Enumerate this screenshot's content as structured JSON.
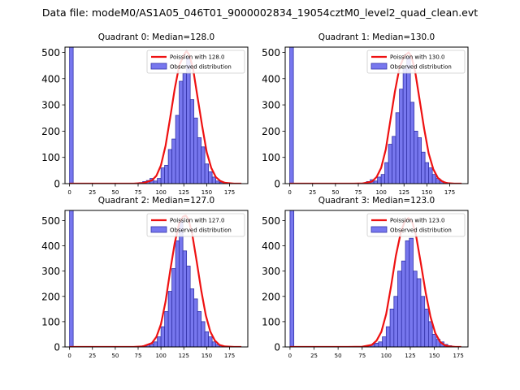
{
  "figure_title": "Data file: modeM0/AS1A05_046T01_9000002834_19054cztM0_level2_quad_clean.evt",
  "colors": {
    "bar_fill": "#7777ee",
    "bar_edge": "#3333aa",
    "poisson_line": "#ee1111",
    "axis": "#000000"
  },
  "chart_data": [
    {
      "type": "bar",
      "title": "Quadrant 0: Median=128.0",
      "xlabel": "",
      "ylabel": "",
      "xlim": [
        -5,
        195
      ],
      "ylim": [
        0,
        520
      ],
      "xticks": [
        0,
        25,
        50,
        75,
        100,
        125,
        150,
        175
      ],
      "yticks": [
        0,
        100,
        200,
        300,
        400,
        500
      ],
      "bin_width": 4,
      "legend": {
        "position": "top-right",
        "entries": [
          "Poission with 128.0",
          "Observed distribution"
        ]
      },
      "series": [
        {
          "name": "Observed distribution",
          "kind": "hist",
          "bins": [
            0,
            68,
            72,
            76,
            80,
            84,
            88,
            92,
            96,
            100,
            104,
            108,
            112,
            116,
            120,
            124,
            128,
            132,
            136,
            140,
            144,
            148,
            152,
            156,
            160,
            164
          ],
          "values": [
            520,
            1,
            2,
            4,
            8,
            12,
            20,
            10,
            20,
            60,
            70,
            130,
            170,
            260,
            390,
            420,
            480,
            320,
            250,
            175,
            140,
            75,
            45,
            25,
            10,
            5
          ]
        },
        {
          "name": "Poission with 128.0",
          "kind": "line",
          "mean": 128.0,
          "x": [
            0,
            70,
            80,
            90,
            95,
            100,
            105,
            110,
            115,
            120,
            125,
            128,
            131,
            135,
            140,
            145,
            150,
            155,
            160,
            165,
            170,
            180,
            188
          ],
          "values": [
            0,
            0,
            2,
            12,
            30,
            70,
            145,
            250,
            360,
            450,
            490,
            505,
            490,
            440,
            330,
            220,
            120,
            60,
            25,
            10,
            3,
            0,
            0
          ]
        }
      ]
    },
    {
      "type": "bar",
      "title": "Quadrant 1: Median=130.0",
      "xlabel": "",
      "ylabel": "",
      "xlim": [
        -5,
        195
      ],
      "ylim": [
        0,
        520
      ],
      "xticks": [
        0,
        25,
        50,
        75,
        100,
        125,
        150,
        175
      ],
      "yticks": [
        0,
        100,
        200,
        300,
        400,
        500
      ],
      "bin_width": 4,
      "legend": {
        "position": "top-right",
        "entries": [
          "Poission with 130.0",
          "Observed distribution"
        ]
      },
      "series": [
        {
          "name": "Observed distribution",
          "kind": "hist",
          "bins": [
            0,
            80,
            84,
            88,
            92,
            96,
            100,
            104,
            108,
            112,
            116,
            120,
            124,
            128,
            132,
            136,
            140,
            144,
            148,
            152,
            156,
            160,
            164,
            168
          ],
          "values": [
            520,
            3,
            8,
            15,
            10,
            25,
            35,
            80,
            150,
            180,
            270,
            360,
            440,
            480,
            310,
            200,
            175,
            120,
            80,
            60,
            35,
            20,
            10,
            5
          ]
        },
        {
          "name": "Poission with 130.0",
          "kind": "line",
          "mean": 130.0,
          "x": [
            0,
            70,
            80,
            90,
            95,
            100,
            105,
            110,
            115,
            120,
            125,
            130,
            133,
            137,
            142,
            147,
            152,
            157,
            162,
            167,
            172,
            180,
            188
          ],
          "values": [
            0,
            0,
            1,
            8,
            25,
            60,
            130,
            240,
            350,
            440,
            485,
            500,
            485,
            430,
            320,
            210,
            115,
            55,
            22,
            8,
            2,
            0,
            0
          ]
        }
      ]
    },
    {
      "type": "bar",
      "title": "Quadrant 2: Median=127.0",
      "xlabel": "",
      "ylabel": "",
      "xlim": [
        -5,
        195
      ],
      "ylim": [
        0,
        540
      ],
      "xticks": [
        0,
        25,
        50,
        75,
        100,
        125,
        150,
        175
      ],
      "yticks": [
        0,
        100,
        200,
        300,
        400,
        500
      ],
      "bin_width": 4,
      "legend": {
        "position": "top-right",
        "entries": [
          "Poission with 127.0",
          "Observed distribution"
        ]
      },
      "series": [
        {
          "name": "Observed distribution",
          "kind": "hist",
          "bins": [
            0,
            76,
            80,
            84,
            88,
            92,
            96,
            100,
            104,
            108,
            112,
            116,
            120,
            124,
            128,
            132,
            136,
            140,
            144,
            148,
            152,
            156,
            160,
            164
          ],
          "values": [
            540,
            2,
            5,
            8,
            12,
            20,
            40,
            80,
            140,
            220,
            310,
            420,
            500,
            380,
            320,
            230,
            190,
            140,
            100,
            60,
            40,
            20,
            10,
            5
          ]
        },
        {
          "name": "Poission with 127.0",
          "kind": "line",
          "mean": 127.0,
          "x": [
            0,
            70,
            80,
            90,
            95,
            100,
            105,
            110,
            115,
            120,
            124,
            127,
            130,
            134,
            139,
            144,
            149,
            154,
            159,
            164,
            170,
            180,
            188
          ],
          "values": [
            0,
            0,
            2,
            15,
            40,
            90,
            180,
            300,
            410,
            490,
            515,
            520,
            505,
            450,
            340,
            225,
            125,
            60,
            25,
            8,
            2,
            0,
            0
          ]
        }
      ]
    },
    {
      "type": "bar",
      "title": "Quadrant 3: Median=123.0",
      "xlabel": "",
      "ylabel": "",
      "xlim": [
        -5,
        185
      ],
      "ylim": [
        0,
        540
      ],
      "xticks": [
        0,
        25,
        50,
        75,
        100,
        125,
        150,
        175
      ],
      "yticks": [
        0,
        100,
        200,
        300,
        400,
        500
      ],
      "bin_width": 4,
      "legend": {
        "position": "top-right",
        "entries": [
          "Poission with 123.0",
          "Observed distribution"
        ]
      },
      "series": [
        {
          "name": "Observed distribution",
          "kind": "hist",
          "bins": [
            0,
            80,
            84,
            88,
            92,
            96,
            100,
            104,
            108,
            112,
            116,
            120,
            124,
            128,
            132,
            136,
            140,
            144,
            148,
            152,
            156,
            160,
            164
          ],
          "values": [
            540,
            5,
            10,
            15,
            20,
            40,
            80,
            150,
            200,
            300,
            340,
            420,
            430,
            300,
            270,
            200,
            150,
            100,
            50,
            30,
            20,
            10,
            5
          ]
        },
        {
          "name": "Poission with 123.0",
          "kind": "line",
          "mean": 123.0,
          "x": [
            0,
            60,
            75,
            85,
            90,
            95,
            100,
            105,
            110,
            115,
            119,
            123,
            127,
            131,
            136,
            141,
            146,
            151,
            156,
            161,
            166,
            172,
            178
          ],
          "values": [
            0,
            0,
            1,
            8,
            25,
            60,
            130,
            240,
            360,
            450,
            495,
            510,
            495,
            440,
            330,
            215,
            120,
            55,
            20,
            6,
            2,
            0,
            0
          ]
        }
      ]
    }
  ]
}
